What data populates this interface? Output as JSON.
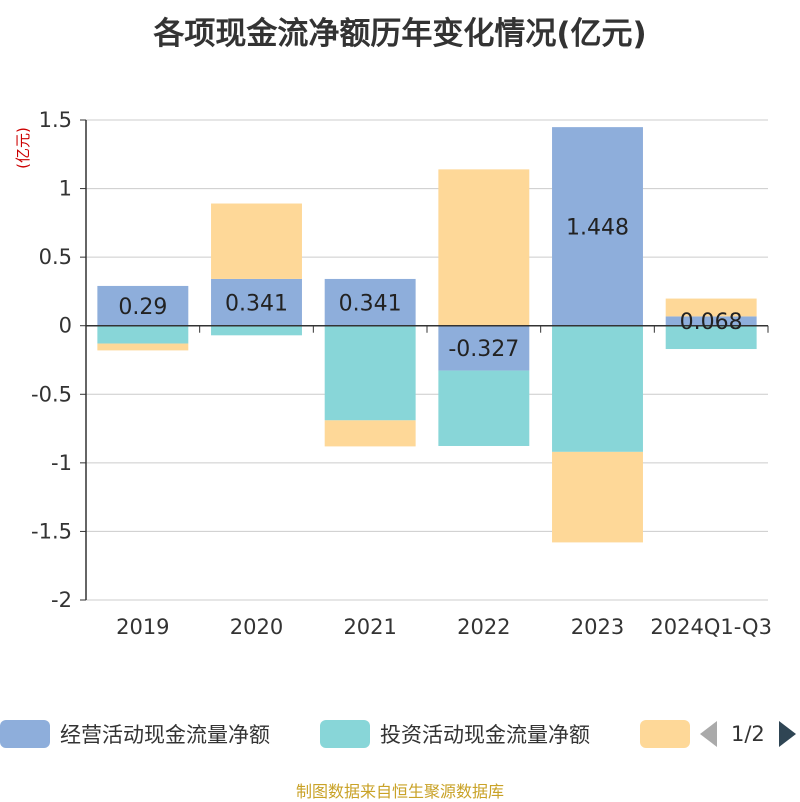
{
  "title": "各项现金流净额历年变化情况(亿元)",
  "chart_data": {
    "type": "bar",
    "stacked": true,
    "unit_label": "(亿元)",
    "categories": [
      "2019",
      "2020",
      "2021",
      "2022",
      "2023",
      "2024Q1-Q3"
    ],
    "ylim": [
      -2,
      1.5
    ],
    "yticks": [
      "1.5",
      "1",
      "0.5",
      "0",
      "-0.5",
      "-1",
      "-1.5",
      "-2"
    ],
    "grid": true,
    "series": [
      {
        "name": "经营活动现金流量净额",
        "color": "#8eaedb",
        "values": [
          0.29,
          0.341,
          0.341,
          -0.327,
          1.448,
          0.068
        ],
        "labels": [
          "0.29",
          "0.341",
          "0.341",
          "-0.327",
          "1.448",
          "0.068"
        ]
      },
      {
        "name": "投资活动现金流量净额",
        "color": "#88d6d8",
        "values": [
          -0.13,
          -0.07,
          -0.69,
          -0.55,
          -0.92,
          -0.17
        ]
      },
      {
        "name": "",
        "color": "#fed898",
        "values": [
          -0.05,
          0.55,
          -0.19,
          1.14,
          -0.66,
          0.13
        ]
      }
    ],
    "legend_position": "bottom"
  },
  "legend": {
    "items": [
      {
        "label": "经营活动现金流量净额",
        "color": "#8eaedb"
      },
      {
        "label": "投资活动现金流量净额",
        "color": "#88d6d8"
      },
      {
        "label": "",
        "color": "#fed898"
      }
    ],
    "page": "1/2"
  },
  "source": "制图数据来自恒生聚源数据库"
}
